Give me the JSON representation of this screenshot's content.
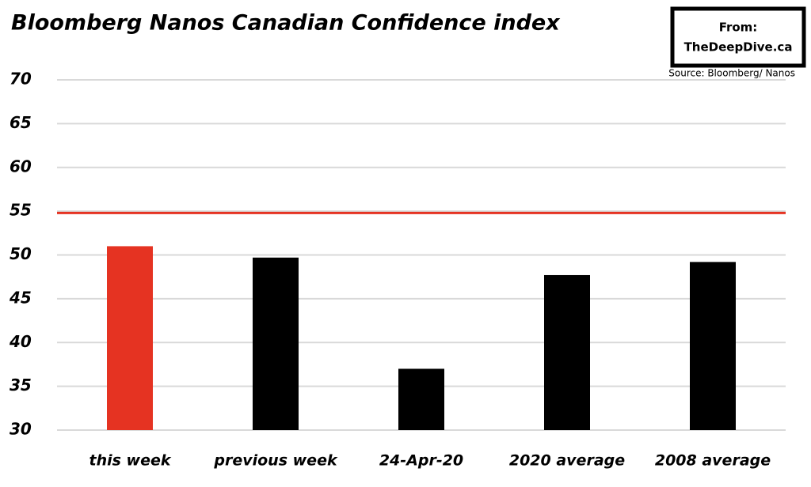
{
  "chart_data": {
    "type": "bar",
    "title": "Bloomberg Nanos Canadian Confidence index",
    "source_box": [
      "From:",
      "TheDeepDive.ca"
    ],
    "source": "Source: Bloomberg/ Nanos",
    "categories": [
      "this week",
      "previous week",
      "24-Apr-20",
      "2020 average",
      "2008 average"
    ],
    "values": [
      51,
      49.7,
      37,
      47.7,
      49.2
    ],
    "colors": [
      "#e53322",
      "#000000",
      "#000000",
      "#000000",
      "#000000"
    ],
    "reference_line": 54.8,
    "reference_color": "#e53322",
    "ylim": [
      30,
      70
    ],
    "yticks": [
      30,
      35,
      40,
      45,
      50,
      55,
      60,
      65,
      70
    ],
    "grid": true
  }
}
